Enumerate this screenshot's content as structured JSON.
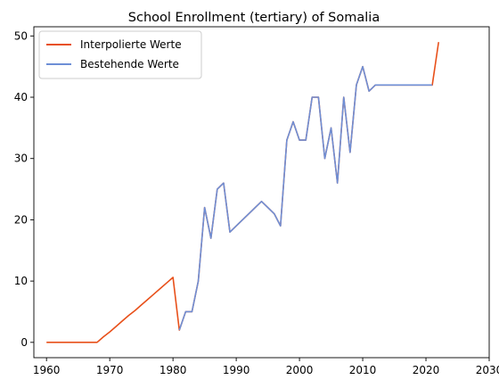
{
  "chart_data": {
    "type": "line",
    "title": "School Enrollment (tertiary) of Somalia",
    "xlabel": "",
    "ylabel": "",
    "xlim": [
      1958,
      2030
    ],
    "ylim": [
      -2.5,
      51.5
    ],
    "xticks": [
      1960,
      1970,
      1980,
      1990,
      2000,
      2010,
      2020,
      2030
    ],
    "yticks": [
      0,
      10,
      20,
      30,
      40,
      50
    ],
    "grid": false,
    "legend_position": "top-left",
    "series": [
      {
        "name": "Interpolierte Werte",
        "color": "#e8501a",
        "x": [
          1960,
          1961,
          1962,
          1963,
          1964,
          1965,
          1966,
          1967,
          1968,
          1969,
          1970,
          1971,
          1972,
          1973,
          1974,
          1975,
          1976,
          1977,
          1978,
          1979,
          1980,
          1981,
          1982,
          1983,
          1984,
          1985,
          1986,
          1987,
          1988,
          1989,
          1994,
          1996,
          1997,
          1998,
          1999,
          2000,
          2001,
          2002,
          2003,
          2004,
          2005,
          2006,
          2007,
          2008,
          2009,
          2010,
          2011,
          2012,
          2021,
          2022
        ],
        "y": [
          0,
          0,
          0,
          0,
          0,
          0,
          0,
          0,
          0,
          0.9,
          1.7,
          2.6,
          3.5,
          4.4,
          5.2,
          6.1,
          7.0,
          7.9,
          8.8,
          9.7,
          10.6,
          2,
          5,
          5,
          10,
          22,
          17,
          25,
          26,
          18,
          23,
          21,
          19,
          33,
          36,
          33,
          33,
          40,
          40,
          30,
          35,
          26,
          40,
          31,
          42,
          45,
          41,
          42,
          42,
          49
        ]
      },
      {
        "name": "Bestehende Werte",
        "color": "#6e8fd6",
        "x": [
          1981,
          1982,
          1983,
          1984,
          1985,
          1986,
          1987,
          1988,
          1989,
          1994,
          1996,
          1997,
          1998,
          1999,
          2000,
          2001,
          2002,
          2003,
          2004,
          2005,
          2006,
          2007,
          2008,
          2009,
          2010,
          2011,
          2012,
          2021
        ],
        "y": [
          2,
          5,
          5,
          10,
          22,
          17,
          25,
          26,
          18,
          23,
          21,
          19,
          33,
          36,
          33,
          33,
          40,
          40,
          30,
          35,
          26,
          40,
          31,
          42,
          45,
          41,
          42,
          42
        ]
      }
    ]
  }
}
